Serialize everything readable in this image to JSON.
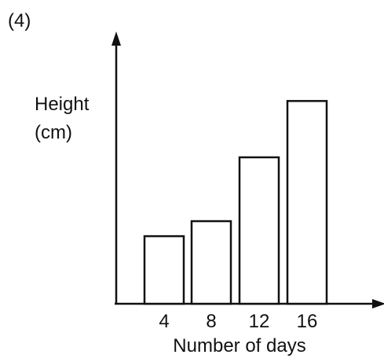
{
  "label": "(4)",
  "chart_data": {
    "type": "bar",
    "categories": [
      "4",
      "8",
      "12",
      "16"
    ],
    "values": [
      3.6,
      4.4,
      7.8,
      10.8
    ],
    "xlabel": "Number of days",
    "ylabel_line1": "Height",
    "ylabel_line2": "(cm)",
    "ylim": [
      0,
      14
    ],
    "grid": false,
    "y_ticks_shown": false
  }
}
